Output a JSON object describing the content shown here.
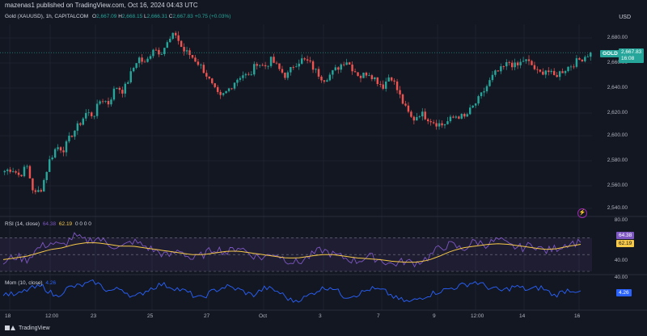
{
  "publisher_line": "mazenas1 published on TradingView.com, Oct 16, 2024 04:43 UTC",
  "currency": "USD",
  "legend": {
    "symbol": "Gold (XAUUSD), 1h, CAPITALCOM",
    "ohlc_prefix_o": "O",
    "o": "2,667.09",
    "ohlc_prefix_h": "H",
    "h": "2,668.15",
    "ohlc_prefix_l": "L",
    "l": "2,666.31",
    "ohlc_prefix_c": "C",
    "c": "2,667.83",
    "change": "+0.75 (+0.03%)"
  },
  "price_tag": {
    "symbol": "GOLD",
    "price": "2,667.83",
    "countdown": "16:08"
  },
  "price_axis": [
    "2,680.00",
    "2,660.00",
    "2,640.00",
    "2,620.00",
    "2,600.00",
    "2,580.00",
    "2,560.00",
    "2,540.00"
  ],
  "rsi": {
    "legend_name": "RSI (14, close)",
    "legend_v1": "64.38",
    "legend_v2": "62.19",
    "legend_rest": "0  0  0  0",
    "axis": [
      "80.00",
      "40.00"
    ],
    "tag1": "64.38",
    "tag2": "62.19"
  },
  "mom": {
    "legend_name": "Mom (10, close)",
    "legend_val": "4.26",
    "axis": [
      "40.00"
    ],
    "tag": "4.26"
  },
  "x_ticks": [
    "18",
    "12:00",
    "23",
    "25",
    "27",
    "Oct",
    "3",
    "7",
    "9",
    "12:00",
    "14",
    "16"
  ],
  "footer": "TradingView",
  "colors": {
    "background": "#131722",
    "up": "#26a69a",
    "down": "#ef5350",
    "rsi_line": "#7e57c2",
    "rsi_ma": "#f7c948",
    "mom_line": "#2962ff",
    "price_tag": "#26a69a"
  },
  "chart_data": [
    {
      "type": "candlestick",
      "title": "Gold (XAUUSD), 1h, CAPITALCOM",
      "x_labels": [
        "18",
        "12:00",
        "23",
        "25",
        "27",
        "Oct",
        "3",
        "7",
        "9",
        "12:00",
        "14",
        "16"
      ],
      "ylim": [
        2535,
        2690
      ],
      "close_path": [
        2570,
        2572,
        2566,
        2574,
        2550,
        2556,
        2578,
        2590,
        2588,
        2600,
        2608,
        2618,
        2616,
        2630,
        2626,
        2640,
        2636,
        2650,
        2664,
        2658,
        2672,
        2668,
        2676,
        2684,
        2670,
        2666,
        2660,
        2652,
        2640,
        2630,
        2636,
        2644,
        2650,
        2648,
        2660,
        2656,
        2662,
        2654,
        2648,
        2658,
        2662,
        2660,
        2652,
        2646,
        2650,
        2656,
        2662,
        2654,
        2648,
        2652,
        2646,
        2640,
        2650,
        2636,
        2622,
        2612,
        2618,
        2614,
        2610,
        2608,
        2612,
        2616,
        2614,
        2622,
        2630,
        2640,
        2650,
        2654,
        2660,
        2656,
        2662,
        2658,
        2650,
        2654,
        2648,
        2652,
        2656,
        2660,
        2664,
        2667.83
      ]
    },
    {
      "type": "line",
      "title": "RSI (14, close)",
      "ylim": [
        30,
        80
      ],
      "series": [
        {
          "name": "RSI",
          "values": [
            40,
            48,
            44,
            58,
            64,
            60,
            72,
            66,
            70,
            62,
            58,
            66,
            60,
            54,
            48,
            56,
            44,
            50,
            58,
            52,
            60,
            50,
            46,
            52,
            44,
            40,
            48,
            56,
            50,
            46,
            42,
            48,
            44,
            38,
            42,
            40,
            46,
            58,
            62,
            56,
            66,
            62,
            68,
            60,
            58,
            62,
            54,
            58,
            64,
            64.38
          ]
        },
        {
          "name": "RSI MA",
          "values": [
            44,
            46,
            48,
            52,
            56,
            58,
            62,
            64,
            64,
            62,
            60,
            60,
            58,
            56,
            54,
            52,
            50,
            50,
            52,
            54,
            54,
            52,
            50,
            48,
            46,
            46,
            48,
            50,
            50,
            48,
            46,
            45,
            44,
            42,
            41,
            41,
            43,
            48,
            54,
            58,
            60,
            62,
            63,
            62,
            60,
            58,
            56,
            57,
            60,
            62.19
          ]
        }
      ]
    },
    {
      "type": "line",
      "title": "Mom (10, close)",
      "series": [
        {
          "name": "Mom",
          "values": [
            0,
            -4,
            8,
            12,
            -6,
            10,
            14,
            20,
            4,
            8,
            -8,
            6,
            16,
            10,
            2,
            -10,
            4,
            12,
            6,
            -4,
            10,
            2,
            -14,
            -8,
            6,
            12,
            -6,
            -2,
            8,
            4,
            -10,
            -16,
            -6,
            2,
            8,
            14,
            20,
            10,
            4,
            12,
            6,
            10,
            -4,
            6,
            4.26
          ]
        }
      ]
    }
  ]
}
